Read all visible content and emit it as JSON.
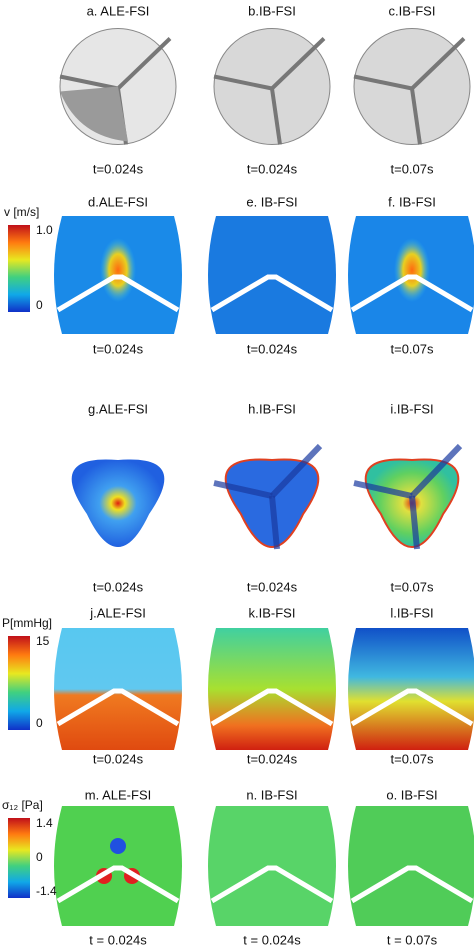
{
  "rows": [
    {
      "panels": [
        {
          "label": "a. ALE-FSI",
          "time": "t=0.024s"
        },
        {
          "label": "b.IB-FSI",
          "time": "t=0.024s"
        },
        {
          "label": "c.IB-FSI",
          "time": "t=0.07s"
        }
      ]
    },
    {
      "colorbar": {
        "title": "v [m/s]",
        "ticks": [
          "1.0",
          "0"
        ]
      },
      "panels": [
        {
          "label": "d.ALE-FSI",
          "time": "t=0.024s"
        },
        {
          "label": "e. IB-FSI",
          "time": "t=0.024s"
        },
        {
          "label": "f. IB-FSI",
          "time": "t=0.07s"
        }
      ]
    },
    {
      "panels": [
        {
          "label": "g.ALE-FSI",
          "time": "t=0.024s"
        },
        {
          "label": "h.IB-FSI",
          "time": "t=0.024s"
        },
        {
          "label": "i.IB-FSI",
          "time": "t=0.07s"
        }
      ]
    },
    {
      "colorbar": {
        "title": "P[mmHg]",
        "ticks": [
          "15",
          "0"
        ]
      },
      "panels": [
        {
          "label": "j.ALE-FSI",
          "time": "t=0.024s"
        },
        {
          "label": "k.IB-FSI",
          "time": "t=0.024s"
        },
        {
          "label": "l.IB-FSI",
          "time": "t=0.07s"
        }
      ]
    },
    {
      "colorbar": {
        "title": "σ₁₂ [Pa]",
        "ticks": [
          "1.4",
          "0",
          "-1.4"
        ]
      },
      "panels": [
        {
          "label": "m. ALE-FSI",
          "time": "t = 0.024s"
        },
        {
          "label": "n. IB-FSI",
          "time": "t = 0.024s"
        },
        {
          "label": "o. IB-FSI",
          "time": "t = 0.07s"
        }
      ]
    }
  ]
}
